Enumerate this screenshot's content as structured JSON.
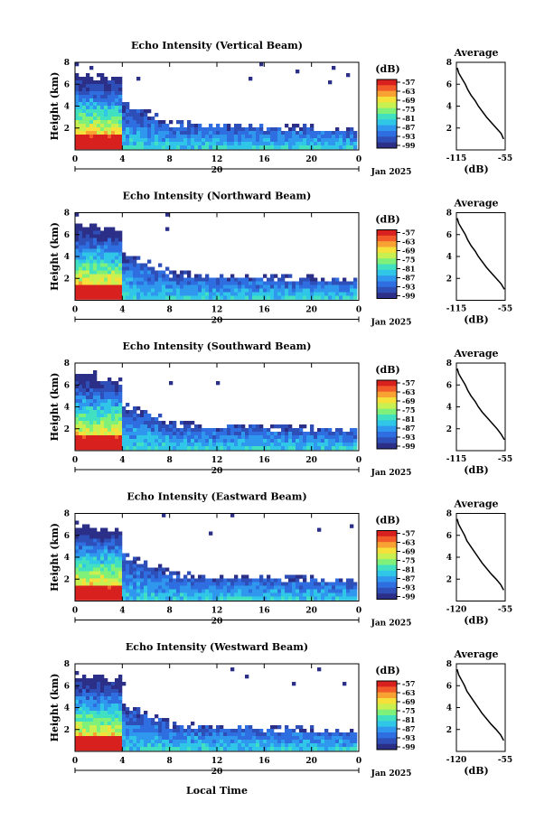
{
  "colors": {
    "scale": [
      "#2b2f88",
      "#2e4fb8",
      "#2f6ee0",
      "#2f98ee",
      "#2fc6e8",
      "#40e0c0",
      "#7ff07a",
      "#c8f050",
      "#f6e03a",
      "#f7a232",
      "#f35a2a",
      "#d8201e"
    ]
  },
  "common": {
    "x_ticks": [
      "0",
      "4",
      "8",
      "12",
      "16",
      "20",
      "0"
    ],
    "date_day": "20",
    "date_label": "Jan 2025",
    "y_label": "Height (km)",
    "y_ticks": [
      "2",
      "4",
      "6",
      "8"
    ],
    "cb_unit": "(dB)",
    "avg_xlabel": "(dB)",
    "avg_y_ticks": [
      "2",
      "4",
      "6",
      "8"
    ],
    "footer_xlabel": "Local Time"
  },
  "panels": [
    {
      "title": "Echo Intensity (Vertical Beam)",
      "cb_ticks": [
        "-57",
        "-63",
        "-69",
        "-75",
        "-81",
        "-87",
        "-93",
        "-99"
      ],
      "avg_title": "Average",
      "avg_xticks": [
        "-115",
        "-55"
      ]
    },
    {
      "title": "Echo Intensity (Northward Beam)",
      "cb_ticks": [
        "-57",
        "-63",
        "-69",
        "-75",
        "-81",
        "-87",
        "-93",
        "-99"
      ],
      "avg_title": "Average",
      "avg_xticks": [
        "-115",
        "-55"
      ]
    },
    {
      "title": "Echo Intensity (Southward Beam)",
      "cb_ticks": [
        "-57",
        "-63",
        "-69",
        "-75",
        "-81",
        "-87",
        "-93",
        "-99"
      ],
      "avg_title": "Average",
      "avg_xticks": [
        "-115",
        "-55"
      ]
    },
    {
      "title": "Echo Intensity (Eastward Beam)",
      "cb_ticks": [
        "-57",
        "-63",
        "-69",
        "-75",
        "-81",
        "-87",
        "-93",
        "-99"
      ],
      "avg_title": "Average",
      "avg_xticks": [
        "-120",
        "-55"
      ]
    },
    {
      "title": "Echo Intensity (Westward Beam)",
      "cb_ticks": [
        "-57",
        "-63",
        "-69",
        "-75",
        "-81",
        "-87",
        "-93",
        "-99"
      ],
      "avg_title": "Average",
      "avg_xticks": [
        "-120",
        "-55"
      ]
    }
  ],
  "chart_data": [
    {
      "type": "heatmap",
      "title": "Echo Intensity (Vertical Beam)",
      "xlabel": "",
      "ylabel": "Height (km)",
      "xlim": [
        0,
        24
      ],
      "ylim": [
        0,
        8
      ],
      "colorbar_range": [
        -99,
        -57
      ],
      "colorbar_unit": "(dB)"
    },
    {
      "type": "line",
      "title": "Average",
      "xlabel": "(dB)",
      "xlim": [
        -115,
        -55
      ],
      "ylim": [
        0,
        8
      ],
      "x": [
        -57,
        -60,
        -66,
        -72,
        -78,
        -83,
        -88,
        -92,
        -97,
        -101,
        -104,
        -108,
        -112,
        -114
      ],
      "y": [
        1,
        1.5,
        2,
        2.5,
        3,
        3.5,
        4,
        4.5,
        5,
        5.5,
        6,
        6.5,
        7,
        7.5
      ]
    },
    {
      "type": "heatmap",
      "title": "Echo Intensity (Northward Beam)",
      "ylabel": "Height (km)",
      "xlim": [
        0,
        24
      ],
      "ylim": [
        0,
        8
      ],
      "colorbar_range": [
        -99,
        -57
      ],
      "colorbar_unit": "(dB)"
    },
    {
      "type": "line",
      "title": "Average",
      "xlabel": "(dB)",
      "xlim": [
        -115,
        -55
      ],
      "ylim": [
        0,
        8
      ],
      "x": [
        -56,
        -60,
        -66,
        -72,
        -78,
        -83,
        -88,
        -92,
        -97,
        -101,
        -104,
        -108,
        -112,
        -114
      ],
      "y": [
        1,
        1.5,
        2,
        2.5,
        3,
        3.5,
        4,
        4.5,
        5,
        5.5,
        6,
        6.5,
        7,
        7.5
      ]
    },
    {
      "type": "heatmap",
      "title": "Echo Intensity (Southward Beam)",
      "ylabel": "Height (km)",
      "xlim": [
        0,
        24
      ],
      "ylim": [
        0,
        8
      ],
      "colorbar_range": [
        -99,
        -57
      ],
      "colorbar_unit": "(dB)"
    },
    {
      "type": "line",
      "title": "Average",
      "xlabel": "(dB)",
      "xlim": [
        -115,
        -55
      ],
      "ylim": [
        0,
        8
      ],
      "x": [
        -56,
        -60,
        -65,
        -71,
        -77,
        -83,
        -88,
        -92,
        -97,
        -101,
        -104,
        -108,
        -112,
        -114
      ],
      "y": [
        1,
        1.5,
        2,
        2.5,
        3,
        3.5,
        4,
        4.5,
        5,
        5.5,
        6,
        6.5,
        7,
        7.5
      ]
    },
    {
      "type": "heatmap",
      "title": "Echo Intensity (Eastward Beam)",
      "ylabel": "Height (km)",
      "xlim": [
        0,
        24
      ],
      "ylim": [
        0,
        8
      ],
      "colorbar_range": [
        -99,
        -57
      ],
      "colorbar_unit": "(dB)"
    },
    {
      "type": "line",
      "title": "Average",
      "xlabel": "(dB)",
      "xlim": [
        -120,
        -55
      ],
      "ylim": [
        0,
        8
      ],
      "x": [
        -57,
        -61,
        -67,
        -74,
        -80,
        -86,
        -91,
        -96,
        -101,
        -106,
        -109,
        -113,
        -117,
        -119
      ],
      "y": [
        1,
        1.5,
        2,
        2.5,
        3,
        3.5,
        4,
        4.5,
        5,
        5.5,
        6,
        6.5,
        7,
        7.5
      ]
    },
    {
      "type": "heatmap",
      "title": "Echo Intensity (Westward Beam)",
      "ylabel": "Height (km)",
      "xlabel": "Local Time",
      "xlim": [
        0,
        24
      ],
      "ylim": [
        0,
        8
      ],
      "colorbar_range": [
        -99,
        -57
      ],
      "colorbar_unit": "(dB)"
    },
    {
      "type": "line",
      "title": "Average",
      "xlabel": "(dB)",
      "xlim": [
        -120,
        -55
      ],
      "ylim": [
        0,
        8
      ],
      "x": [
        -57,
        -61,
        -67,
        -74,
        -80,
        -86,
        -91,
        -96,
        -101,
        -106,
        -109,
        -113,
        -117,
        -119
      ],
      "y": [
        1,
        1.5,
        2,
        2.5,
        3,
        3.5,
        4,
        4.5,
        5,
        5.5,
        6,
        6.5,
        7,
        7.5
      ]
    }
  ]
}
